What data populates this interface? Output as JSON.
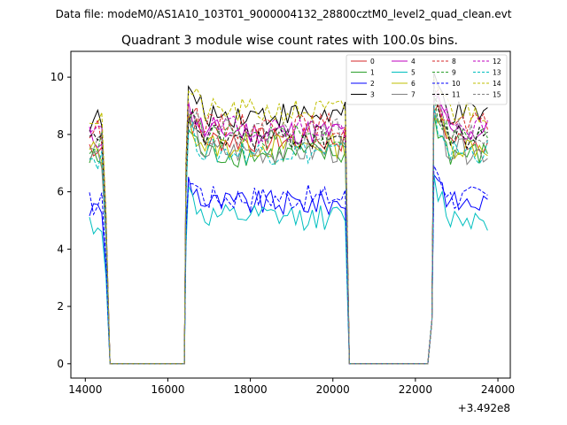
{
  "chart_data": {
    "type": "line",
    "suptitle": "Data file: modeM0/AS1A10_103T01_9000004132_28800cztM0_level2_quad_clean.evt",
    "title": "Quadrant 3 module wise count rates with 100.0s bins.",
    "xlabel": "",
    "ylabel": "",
    "x_offset_label": "+3.492e8",
    "xlim": [
      13650,
      24300
    ],
    "ylim": [
      -0.5,
      10.9
    ],
    "x_ticks": [
      14000,
      16000,
      18000,
      20000,
      22000,
      24000
    ],
    "y_ticks": [
      0,
      2,
      4,
      6,
      8,
      10
    ],
    "grid": false,
    "legend_position": "top-right",
    "segments": [
      {
        "start": 14100,
        "end": 14400
      },
      {
        "start": 16450,
        "end": 20350
      },
      {
        "start": 22450,
        "end": 23800
      }
    ],
    "gap_starts": [
      14600,
      20400
    ],
    "series": [
      {
        "name": "0",
        "color": "#d62728",
        "style": "solid",
        "level": 7.8
      },
      {
        "name": "1",
        "color": "#2ca02c",
        "style": "solid",
        "level": 7.3
      },
      {
        "name": "2",
        "color": "#0000ff",
        "style": "solid",
        "level": 5.6
      },
      {
        "name": "3",
        "color": "#000000",
        "style": "solid",
        "level": 8.7
      },
      {
        "name": "4",
        "color": "#bf00bf",
        "style": "solid",
        "level": 8.1
      },
      {
        "name": "5",
        "color": "#00bfbf",
        "style": "solid",
        "level": 5.1
      },
      {
        "name": "6",
        "color": "#bfbf00",
        "style": "solid",
        "level": 7.6
      },
      {
        "name": "7",
        "color": "#808080",
        "style": "solid",
        "level": 7.4
      },
      {
        "name": "8",
        "color": "#d62728",
        "style": "dashed",
        "level": 8.3
      },
      {
        "name": "9",
        "color": "#2ca02c",
        "style": "dashed",
        "level": 7.9
      },
      {
        "name": "10",
        "color": "#0000ff",
        "style": "dashed",
        "level": 5.8
      },
      {
        "name": "11",
        "color": "#000000",
        "style": "dashed",
        "level": 7.9
      },
      {
        "name": "12",
        "color": "#bf00bf",
        "style": "dashed",
        "level": 8.2
      },
      {
        "name": "13",
        "color": "#00bfbf",
        "style": "dashed",
        "level": 7.4
      },
      {
        "name": "14",
        "color": "#bfbf00",
        "style": "dashed",
        "level": 8.8
      },
      {
        "name": "15",
        "color": "#808080",
        "style": "dashed",
        "level": 8.1
      }
    ]
  }
}
